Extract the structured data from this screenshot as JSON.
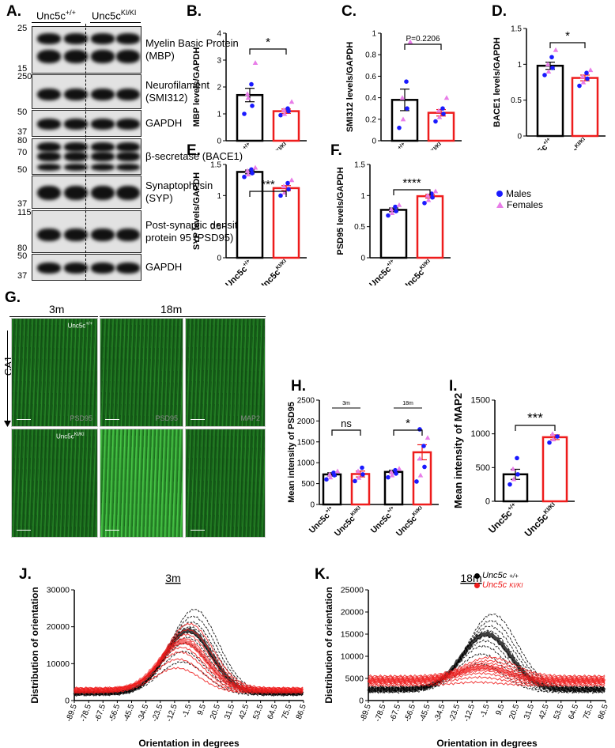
{
  "panel_letters": {
    "A": "A.",
    "B": "B.",
    "C": "C.",
    "D": "D.",
    "E": "E.",
    "F": "F.",
    "G": "G.",
    "H": "H.",
    "I": "I.",
    "J": "J.",
    "K": "K."
  },
  "blot": {
    "group1": "Unc5c",
    "group1_sup": "+/+",
    "group2": "Unc5c",
    "group2_sup": "KI/KI",
    "rows": [
      {
        "label": "Myelin Basic Protein\n(MBP)",
        "mw_top": "25",
        "mw_bottom": "15"
      },
      {
        "label": "Neurofilament\n(SMI312)",
        "mw_top": "250",
        "mw_bottom": ""
      },
      {
        "label": "GAPDH",
        "mw_top": "50",
        "mw_bottom": "37"
      },
      {
        "label": "β-secretase (BACE1)",
        "mw_top": "80",
        "mw_mid": "70",
        "mw_bottom": "50"
      },
      {
        "label": "Synaptophysin\n (SYP)",
        "mw_top": "",
        "mw_bottom": "37"
      },
      {
        "label": "Post-synaptic density\nprotein 95 (PSD95)",
        "mw_top": "115",
        "mw_bottom": "80"
      },
      {
        "label": "GAPDH",
        "mw_top": "50",
        "mw_bottom": "37"
      }
    ]
  },
  "legend_sex": {
    "males": "Males",
    "females": "Females",
    "male_color": "#1a1aff",
    "female_color": "#e87de8"
  },
  "colors": {
    "wt": "#000000",
    "ki": "#ee1c1c",
    "micro_green": "#2fa82f"
  },
  "xlabels": {
    "wt": "Unc5c",
    "wt_sup": "+/+",
    "ki": "Unc5c",
    "ki_sup": "KI/KI"
  },
  "chart_data": [
    {
      "id": "B",
      "type": "bar",
      "ylabel": "MBP levels/GAPDH",
      "ylim": [
        0,
        4
      ],
      "yticks": [
        0,
        1,
        2,
        3,
        4
      ],
      "categories": [
        "Unc5c+/+",
        "Unc5cKI/KI"
      ],
      "values": [
        1.7,
        1.1
      ],
      "errors": [
        0.25,
        0.08
      ],
      "significance": "*",
      "points": [
        [
          1.0,
          1.6,
          1.3,
          1.75,
          2.1,
          2.9
        ],
        [
          0.95,
          1.0,
          1.1,
          1.15,
          1.2,
          1.45
        ]
      ]
    },
    {
      "id": "C",
      "type": "bar",
      "ylabel": "SMI312 levels/GAPDH",
      "ylim": [
        0,
        1.0
      ],
      "yticks": [
        0,
        0.2,
        0.4,
        0.6,
        0.8,
        1.0
      ],
      "categories": [
        "Unc5c+/+",
        "Unc5cKI/KI"
      ],
      "values": [
        0.38,
        0.26
      ],
      "errors": [
        0.1,
        0.03
      ],
      "significance": "P=0.2206",
      "points": [
        [
          0.12,
          0.2,
          0.3,
          0.4,
          0.55,
          0.92
        ],
        [
          0.18,
          0.22,
          0.25,
          0.28,
          0.3,
          0.4
        ]
      ]
    },
    {
      "id": "D",
      "type": "bar",
      "ylabel": "BACE1 levels/GAPDH",
      "ylim": [
        0,
        1.5
      ],
      "yticks": [
        0,
        0.5,
        1.0,
        1.5
      ],
      "categories": [
        "Unc5c+/+",
        "Unc5cKI/KI"
      ],
      "values": [
        0.98,
        0.81
      ],
      "errors": [
        0.05,
        0.04
      ],
      "significance": "*",
      "points": [
        [
          0.85,
          0.9,
          0.95,
          1.0,
          1.1,
          1.2
        ],
        [
          0.7,
          0.75,
          0.8,
          0.83,
          0.88,
          0.92
        ]
      ]
    },
    {
      "id": "E",
      "type": "bar",
      "ylabel": "SYP levels/GAPDH",
      "ylim": [
        0,
        1.5
      ],
      "yticks": [
        0,
        0.5,
        1.0,
        1.5
      ],
      "categories": [
        "Unc5c+/+",
        "Unc5cKI/KI"
      ],
      "values": [
        1.38,
        1.12
      ],
      "errors": [
        0.03,
        0.04
      ],
      "significance": "***",
      "points": [
        [
          1.3,
          1.34,
          1.36,
          1.4,
          1.42,
          1.45
        ],
        [
          1.0,
          1.05,
          1.1,
          1.15,
          1.2,
          1.25
        ]
      ]
    },
    {
      "id": "F",
      "type": "bar",
      "ylabel": "PSD95 levels/GAPDH",
      "ylim": [
        0,
        1.5
      ],
      "yticks": [
        0,
        0.5,
        1.0,
        1.5
      ],
      "categories": [
        "Unc5c+/+",
        "Unc5cKI/KI"
      ],
      "values": [
        0.77,
        0.99
      ],
      "errors": [
        0.03,
        0.03
      ],
      "significance": "****",
      "points": [
        [
          0.68,
          0.72,
          0.75,
          0.78,
          0.82,
          0.85
        ],
        [
          0.88,
          0.93,
          0.97,
          1.0,
          1.03,
          1.07
        ]
      ]
    },
    {
      "id": "H",
      "type": "bar",
      "ylabel": "Mean intensity of PSD95",
      "ylim": [
        0,
        2500
      ],
      "yticks": [
        0,
        500,
        1000,
        1500,
        2000,
        2500
      ],
      "categories": [
        "Unc5c+/+",
        "Unc5cKI/KI",
        "Unc5c+/+",
        "Unc5cKI/KI"
      ],
      "values": [
        720,
        730,
        780,
        1250
      ],
      "errors": [
        40,
        70,
        40,
        180
      ],
      "comparisons": [
        {
          "group": "3m",
          "label": "ns"
        },
        {
          "group": "18m",
          "label": "*"
        }
      ],
      "points": [
        [
          600,
          650,
          700,
          720,
          760,
          800
        ],
        [
          560,
          640,
          720,
          800,
          880
        ],
        [
          650,
          700,
          740,
          780,
          820,
          860
        ],
        [
          550,
          700,
          900,
          1100,
          1400,
          1600,
          1800
        ]
      ]
    },
    {
      "id": "I",
      "type": "bar",
      "ylabel": "Mean intensity of MAP2",
      "ylim": [
        0,
        1500
      ],
      "yticks": [
        0,
        500,
        1000,
        1500
      ],
      "categories": [
        "Unc5c+/+",
        "Unc5cKI/KI"
      ],
      "values": [
        400,
        950
      ],
      "errors": [
        75,
        35
      ],
      "significance": "***",
      "points": [
        [
          250,
          330,
          400,
          480,
          640
        ],
        [
          870,
          920,
          960,
          1000
        ]
      ]
    },
    {
      "id": "J",
      "type": "line",
      "title": "3m",
      "xlabel": "Orientation in degrees",
      "ylabel": "Distribution of orientation",
      "ylim": [
        0,
        30000
      ],
      "yticks": [
        0,
        10000,
        20000,
        30000
      ],
      "x": [
        "-89.5",
        "-78.5",
        "-67.5",
        "-56.5",
        "-45.5",
        "-34.5",
        "-23.5",
        "-12.5",
        "-1.5",
        "9.5",
        "20.5",
        "31.5",
        "42.5",
        "53.5",
        "64.5",
        "75.5",
        "86.5"
      ],
      "series": [
        {
          "name": "Unc5c+/+",
          "peak": 19000,
          "base": 2000,
          "center": -2
        },
        {
          "name": "Unc5cKI/KI",
          "peak": 16000,
          "base": 2800,
          "center": -6
        }
      ]
    },
    {
      "id": "K",
      "type": "line",
      "title": "18m",
      "xlabel": "Orientation in degrees",
      "ylabel": "Distribution of orientation",
      "ylim": [
        0,
        25000
      ],
      "yticks": [
        0,
        5000,
        10000,
        15000,
        20000,
        25000
      ],
      "x": [
        "-89.5",
        "-78.5",
        "-67.5",
        "-56.5",
        "-45.5",
        "-34.5",
        "-23.5",
        "-12.5",
        "-1.5",
        "9.5",
        "20.5",
        "31.5",
        "42.5",
        "53.5",
        "64.5",
        "75.5",
        "86.5"
      ],
      "series": [
        {
          "name": "Unc5c+/+",
          "peak": 15000,
          "base": 2500,
          "center": -2
        },
        {
          "name": "Unc5cKI/KI",
          "peak": 7500,
          "base": 4500,
          "center": -4
        }
      ]
    }
  ],
  "micro": {
    "age_3m": "3m",
    "age_18m": "18m",
    "region": "CA1",
    "wt_label": "Unc5c",
    "wt_sup": "+/+",
    "ki_label": "Unc5c",
    "ki_sup": "KI/KI",
    "stain1": "PSD95",
    "stain2": "PSD95",
    "stain3": "MAP2"
  },
  "legend_lines": {
    "wt": "Unc5c",
    "wt_sup": "+/+",
    "ki": "Unc5c",
    "ki_sup": "KI/KI"
  }
}
